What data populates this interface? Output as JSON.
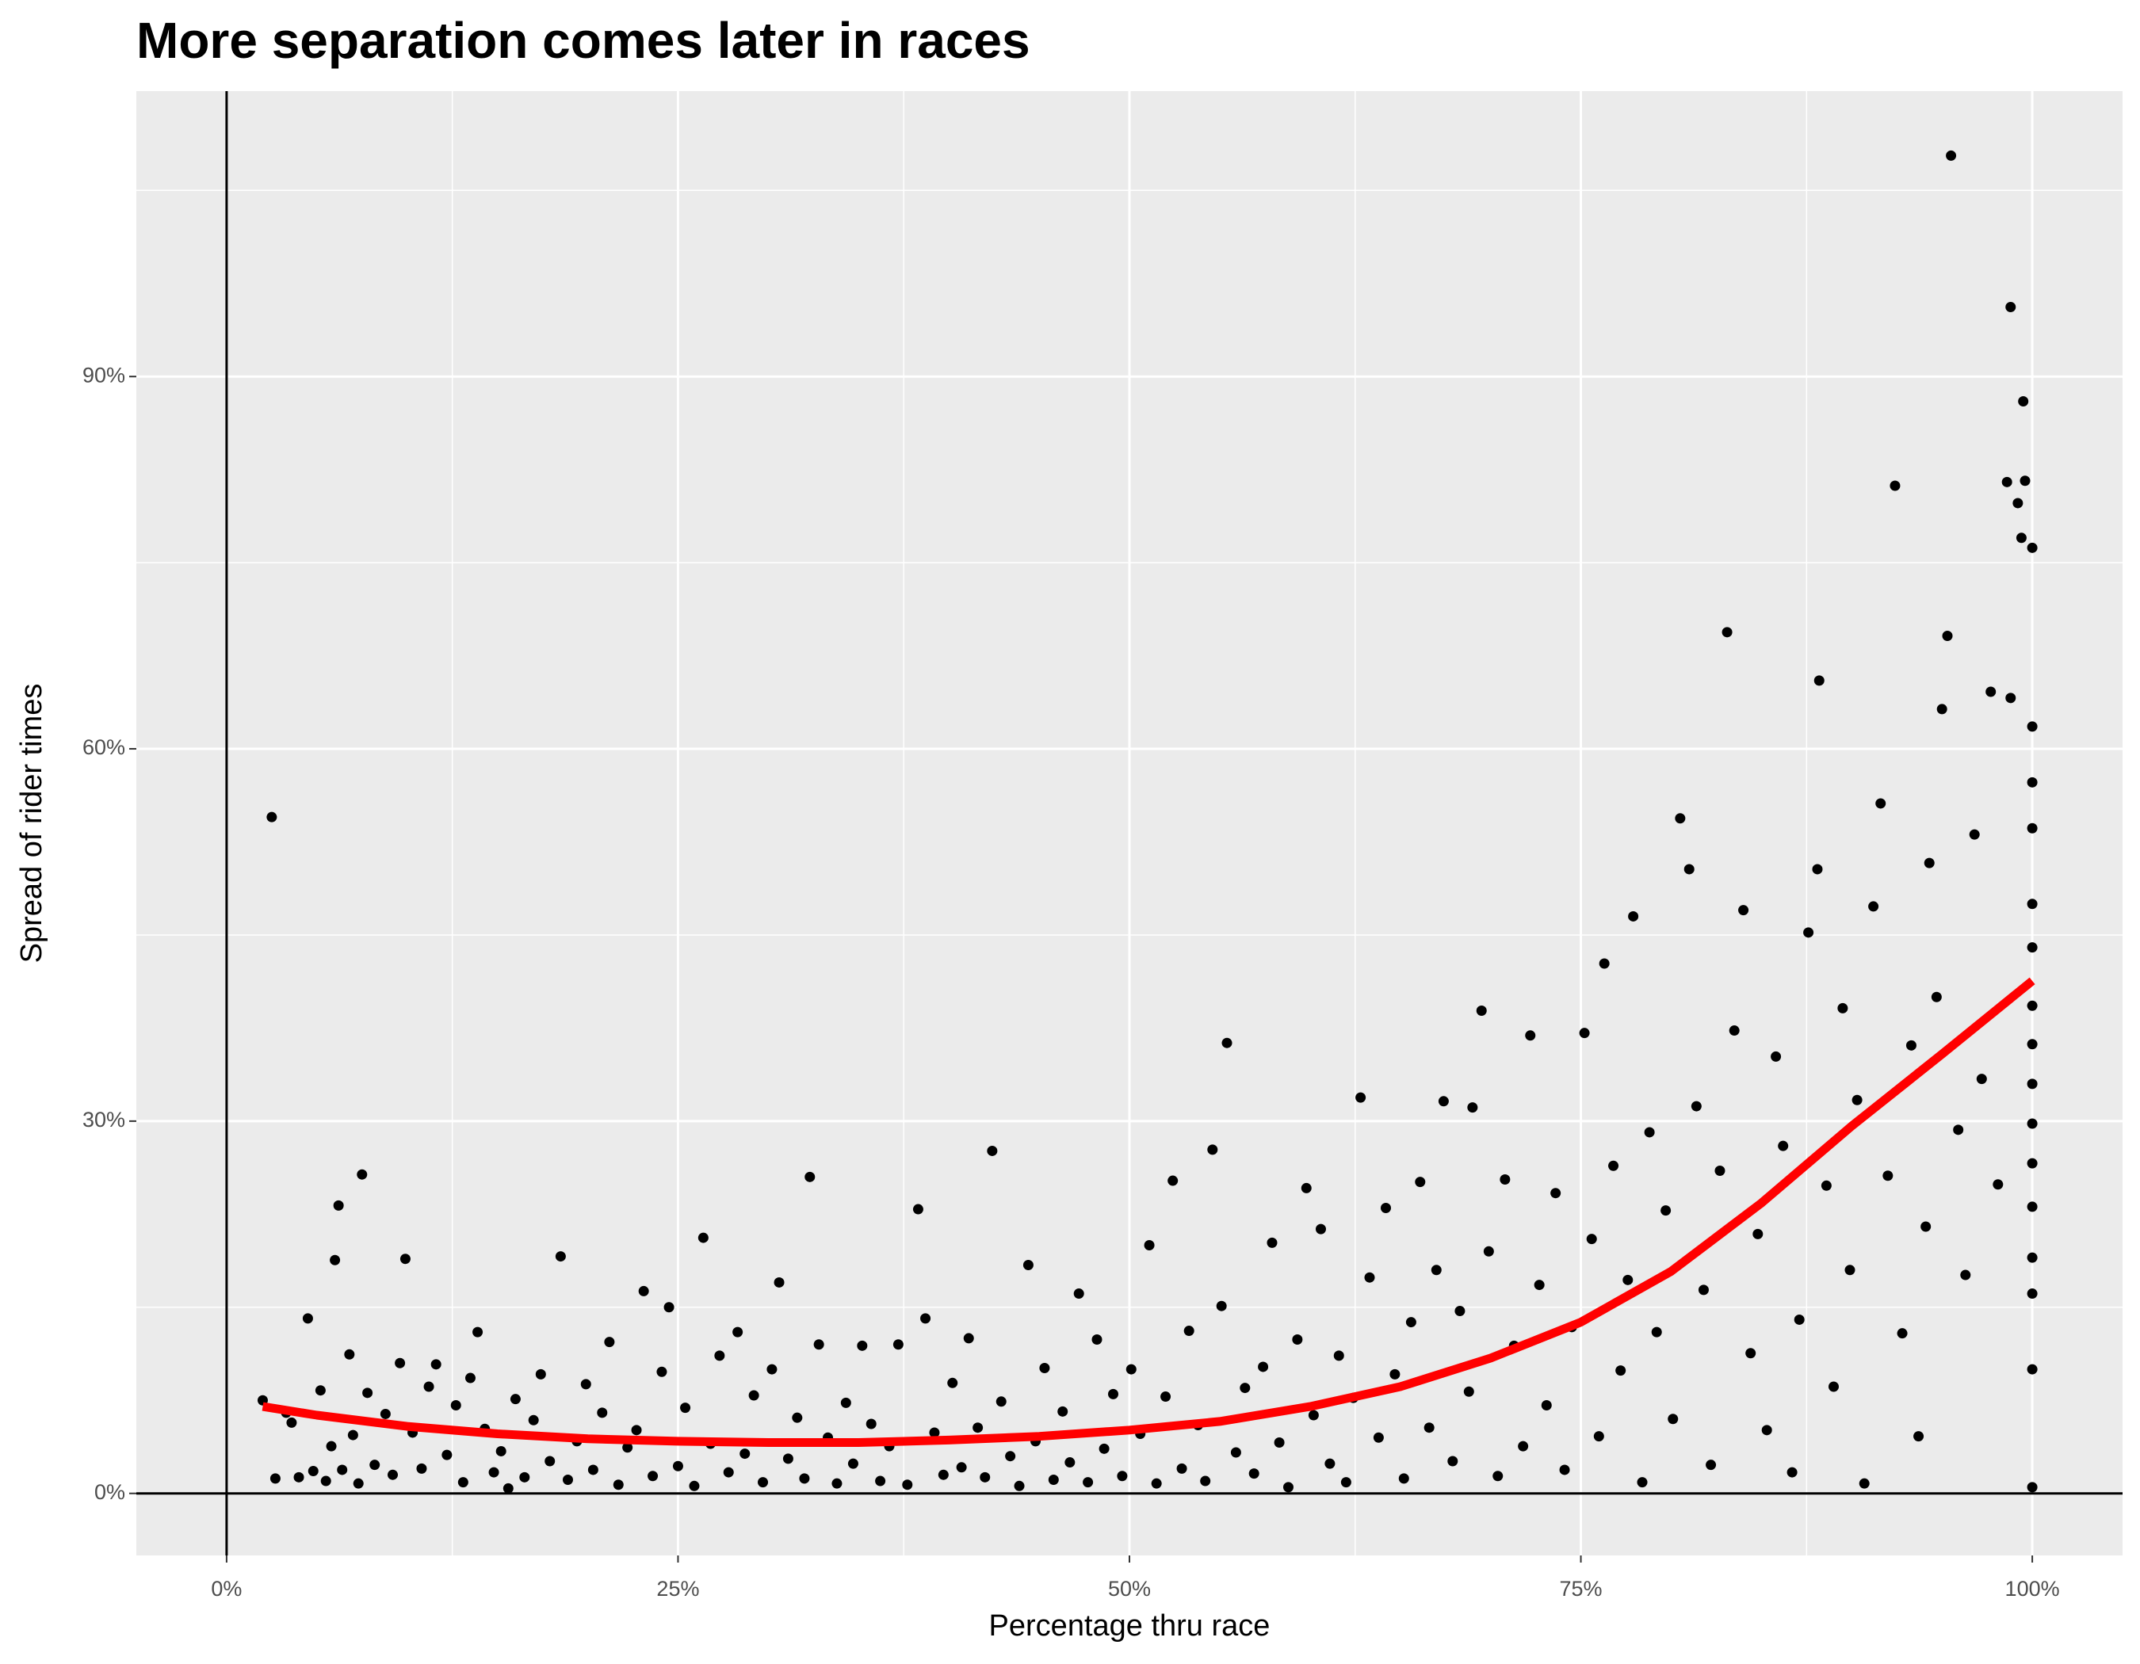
{
  "chart_data": {
    "type": "scatter",
    "title": "More separation comes later in races",
    "xlabel": "Percentage thru race",
    "ylabel": "Spread of rider times",
    "xlim": [
      -5,
      105
    ],
    "ylim": [
      -5,
      113
    ],
    "xticks": [
      {
        "value": 0,
        "label": "0%"
      },
      {
        "value": 25,
        "label": "25%"
      },
      {
        "value": 50,
        "label": "50%"
      },
      {
        "value": 75,
        "label": "75%"
      },
      {
        "value": 100,
        "label": "100%"
      }
    ],
    "yticks": [
      {
        "value": 0,
        "label": "0%"
      },
      {
        "value": 30,
        "label": "30%"
      },
      {
        "value": 60,
        "label": "60%"
      },
      {
        "value": 90,
        "label": "90%"
      }
    ],
    "grid": true,
    "hline": 0,
    "vline": 0,
    "color": "#000000",
    "x": [
      2.5,
      2,
      2.7,
      3.3,
      3.6,
      4,
      4.5,
      4.8,
      5.2,
      5.5,
      5.8,
      6,
      6.2,
      6.4,
      6.8,
      7,
      7.3,
      7.5,
      7.8,
      8.2,
      8.8,
      9.2,
      9.6,
      9.9,
      10.3,
      10.8,
      11.2,
      11.6,
      12.2,
      12.7,
      13.1,
      13.5,
      13.9,
      14.3,
      14.8,
      15.2,
      15.6,
      16.0,
      16.5,
      17.0,
      17.4,
      17.9,
      18.5,
      18.9,
      19.4,
      19.9,
      20.3,
      20.8,
      21.2,
      21.7,
      22.2,
      22.7,
      23.1,
      23.6,
      24.1,
      24.5,
      25,
      25.4,
      25.9,
      26.4,
      26.8,
      27.3,
      27.8,
      28.3,
      28.7,
      29.2,
      29.7,
      30.2,
      30.6,
      31.1,
      31.6,
      32.0,
      32.3,
      32.8,
      33.3,
      33.8,
      34.3,
      34.7,
      35.2,
      35.7,
      36.2,
      36.7,
      37.2,
      37.7,
      38.3,
      38.7,
      39.2,
      39.7,
      40.2,
      40.7,
      41.1,
      41.6,
      42.0,
      42.4,
      42.9,
      43.4,
      43.9,
      44.4,
      44.8,
      45.3,
      45.8,
      46.3,
      46.7,
      47.2,
      47.7,
      48.2,
      48.6,
      49.1,
      49.6,
      50.1,
      50.6,
      51.1,
      51.5,
      52.0,
      52.4,
      52.9,
      53.3,
      53.8,
      54.2,
      54.6,
      55.1,
      55.4,
      55.9,
      56.4,
      56.9,
      57.4,
      57.9,
      58.3,
      58.8,
      59.3,
      59.8,
      60.2,
      60.6,
      61.1,
      61.6,
      62.0,
      62.4,
      62.8,
      63.3,
      63.8,
      64.2,
      64.7,
      65.2,
      65.6,
      66.1,
      66.6,
      67.0,
      67.4,
      67.9,
      68.3,
      68.8,
      69.0,
      69.5,
      69.9,
      70.4,
      70.8,
      71.3,
      71.8,
      72.2,
      72.7,
      73.1,
      73.6,
      74.1,
      74.5,
      75.2,
      75.6,
      76.0,
      76.3,
      76.8,
      77.2,
      77.6,
      77.9,
      78.4,
      78.8,
      79.2,
      79.7,
      80.1,
      80.5,
      81.0,
      81.4,
      81.8,
      82.2,
      82.7,
      83.1,
      83.5,
      84.0,
      84.4,
      84.8,
      85.3,
      85.8,
      86.2,
      86.7,
      87.1,
      87.6,
      88.1,
      88.2,
      88.6,
      89.0,
      89.5,
      89.9,
      90.3,
      90.7,
      91.2,
      91.6,
      92.0,
      92.4,
      92.8,
      93.3,
      93.7,
      94.1,
      94.3,
      94.7,
      95.0,
      95.3,
      95.5,
      95.9,
      96.3,
      96.8,
      97.2,
      97.7,
      98.1,
      98.6,
      98.8,
      98.8,
      99.2,
      99.4,
      99.5,
      99.6,
      100,
      100,
      100,
      100,
      100,
      100,
      100,
      100,
      100,
      100,
      100,
      100,
      100,
      100,
      100,
      100
    ],
    "y": [
      54.5,
      7.5,
      1.2,
      6.5,
      5.7,
      1.3,
      14.1,
      1.8,
      8.3,
      1.0,
      3.8,
      18.8,
      23.2,
      1.9,
      11.2,
      4.7,
      0.8,
      25.7,
      8.1,
      2.3,
      6.4,
      1.5,
      10.5,
      18.9,
      4.9,
      2.0,
      8.6,
      10.4,
      3.1,
      7.1,
      0.9,
      9.3,
      13.0,
      5.2,
      1.7,
      3.4,
      0.4,
      7.6,
      1.3,
      5.9,
      9.6,
      2.6,
      19.1,
      1.1,
      4.2,
      8.8,
      1.9,
      6.5,
      12.2,
      0.7,
      3.7,
      5.1,
      16.3,
      1.4,
      9.8,
      15.0,
      2.2,
      6.9,
      0.6,
      20.6,
      4.0,
      11.1,
      1.7,
      13.0,
      3.2,
      7.9,
      0.9,
      10.0,
      17.0,
      2.8,
      6.1,
      1.2,
      25.5,
      12.0,
      4.5,
      0.8,
      7.3,
      2.4,
      11.9,
      5.6,
      1.0,
      3.8,
      12.0,
      0.7,
      22.9,
      14.1,
      4.9,
      1.5,
      8.9,
      2.1,
      12.5,
      5.3,
      1.3,
      27.6,
      7.4,
      3.0,
      0.6,
      18.4,
      4.2,
      10.1,
      1.1,
      6.6,
      2.5,
      16.1,
      0.9,
      12.4,
      3.6,
      8.0,
      1.4,
      10.0,
      4.8,
      20.0,
      0.8,
      7.8,
      25.2,
      2.0,
      13.1,
      5.5,
      1.0,
      27.7,
      15.1,
      36.3,
      3.3,
      8.5,
      1.6,
      10.2,
      20.2,
      4.1,
      0.5,
      12.4,
      24.6,
      6.3,
      21.3,
      2.4,
      11.1,
      0.9,
      7.7,
      31.9,
      17.4,
      4.5,
      23.0,
      9.6,
      1.2,
      13.8,
      25.1,
      5.3,
      18.0,
      31.6,
      2.6,
      14.7,
      8.2,
      31.1,
      38.9,
      19.5,
      1.4,
      25.3,
      11.9,
      3.8,
      36.9,
      16.8,
      7.1,
      24.2,
      1.9,
      13.4,
      37.1,
      20.5,
      4.6,
      42.7,
      26.4,
      9.9,
      17.2,
      46.5,
      0.9,
      29.1,
      13.0,
      22.8,
      6.0,
      54.4,
      50.3,
      31.2,
      16.4,
      2.3,
      26.0,
      69.4,
      37.3,
      47.0,
      11.3,
      20.9,
      5.1,
      35.2,
      28.0,
      1.7,
      14.0,
      45.2,
      50.3,
      65.5,
      24.8,
      8.6,
      39.1,
      18.0,
      31.7,
      0.8,
      47.3,
      55.6,
      25.6,
      81.2,
      12.9,
      36.1,
      4.6,
      21.5,
      50.8,
      40.0,
      63.2,
      69.1,
      107.8,
      29.3,
      17.6,
      53.1,
      33.4,
      64.6,
      24.9,
      81.5,
      64.1,
      95.6,
      79.8,
      77.0,
      88.0,
      81.6,
      76.2,
      61.8,
      57.3,
      53.6,
      47.5,
      44.0,
      39.3,
      36.2,
      33.0,
      29.8,
      26.6,
      23.1,
      19.0,
      16.1,
      10.0,
      0.5
    ],
    "trend": {
      "color": "#ff0000",
      "x": [
        2,
        5,
        10,
        15,
        20,
        25,
        30,
        35,
        40,
        45,
        50,
        55,
        60,
        65,
        70,
        75,
        80,
        85,
        90,
        95,
        100
      ],
      "y": [
        7.0,
        6.3,
        5.4,
        4.8,
        4.4,
        4.2,
        4.1,
        4.1,
        4.3,
        4.6,
        5.1,
        5.8,
        7.0,
        8.6,
        10.9,
        13.8,
        17.9,
        23.4,
        29.6,
        35.4,
        41.3
      ]
    }
  }
}
